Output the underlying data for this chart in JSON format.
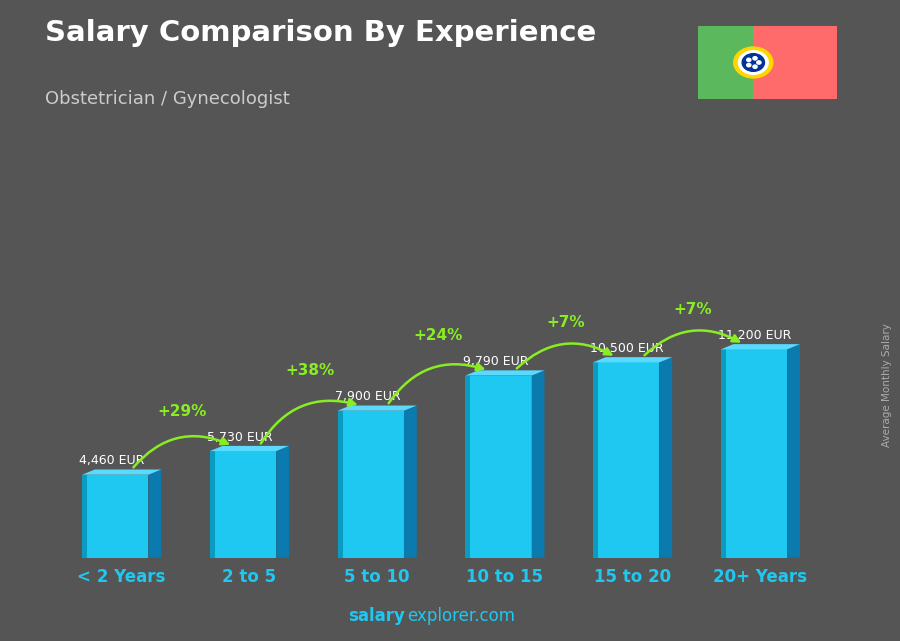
{
  "title": "Salary Comparison By Experience",
  "subtitle": "Obstetrician / Gynecologist",
  "categories": [
    "< 2 Years",
    "2 to 5",
    "5 to 10",
    "10 to 15",
    "15 to 20",
    "20+ Years"
  ],
  "values": [
    4460,
    5730,
    7900,
    9790,
    10500,
    11200
  ],
  "value_labels": [
    "4,460 EUR",
    "5,730 EUR",
    "7,900 EUR",
    "9,790 EUR",
    "10,500 EUR",
    "11,200 EUR"
  ],
  "pct_changes": [
    "+29%",
    "+38%",
    "+24%",
    "+7%",
    "+7%"
  ],
  "bar_face_color": "#1EC8F0",
  "bar_top_color": "#5ADAFF",
  "bar_side_color": "#0A7AAF",
  "bar_left_edge": "#086090",
  "background_color": "#555555",
  "title_color": "#FFFFFF",
  "subtitle_color": "#CCCCCC",
  "pct_color": "#88EE22",
  "xlabel_color": "#1EC8F0",
  "value_label_color": "#FFFFFF",
  "watermark_bold": "salary",
  "watermark_normal": "explorer.com",
  "ylabel_text": "Average Monthly Salary",
  "ylabel_color": "#AAAAAA",
  "flag_green": "#5CB85C",
  "flag_red": "#FF6B6B",
  "flag_yellow": "#FFD700",
  "figsize": [
    9.0,
    6.41
  ],
  "dpi": 100
}
